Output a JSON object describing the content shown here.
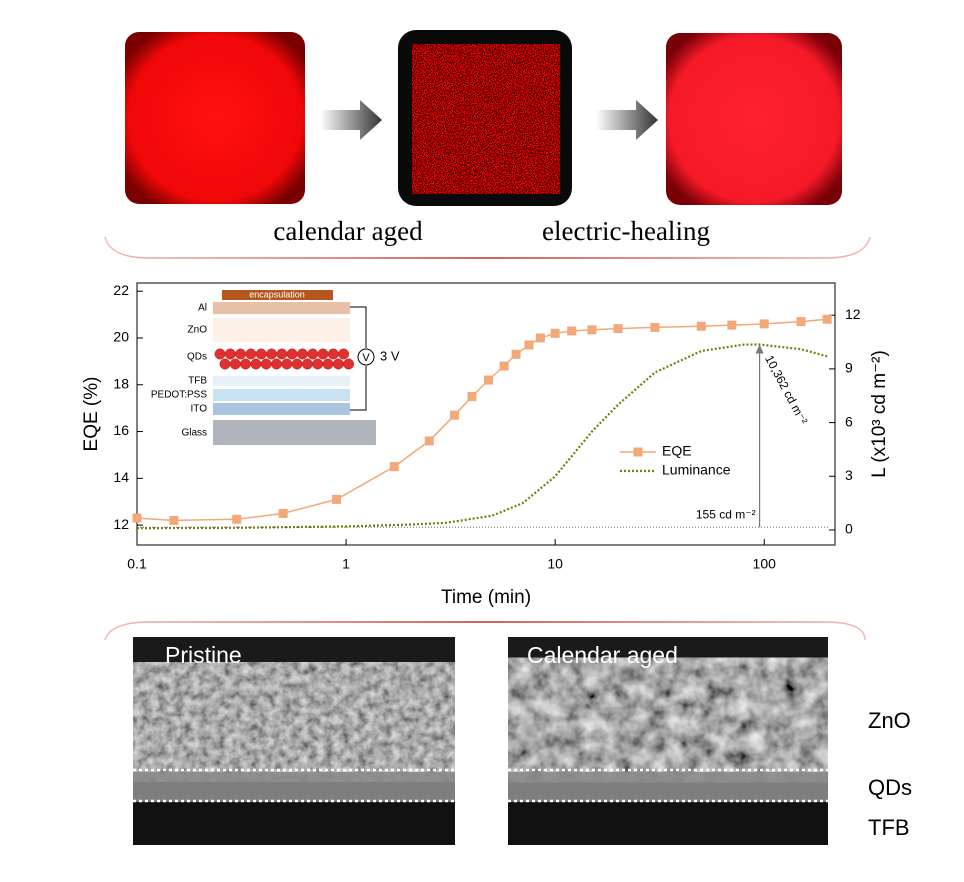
{
  "images": {
    "labels": [
      "calendar aged",
      "electric-healing"
    ]
  },
  "chart_data": {
    "type": "line",
    "xscale": "log",
    "xlabel": "Time (min)",
    "ylabel": "EQE (%)",
    "y2label": "L (x10³ cd m⁻²)",
    "xlim": [
      0.1,
      218
    ],
    "xticks": [
      0.1,
      1,
      10,
      100
    ],
    "ylim": [
      11.15,
      22.35
    ],
    "yticks": [
      12,
      14,
      16,
      18,
      20,
      22
    ],
    "y2lim": [
      -0.84,
      13.8
    ],
    "y2ticks": [
      0,
      3,
      6,
      9,
      12
    ],
    "legend": "center-right",
    "series": [
      {
        "name": "EQE",
        "color": "#f2a878",
        "x": [
          0.1,
          0.15,
          0.3,
          0.5,
          0.9,
          1.7,
          2.5,
          3.3,
          4,
          4.8,
          5.7,
          6.5,
          7.5,
          8.5,
          10,
          12,
          15,
          20,
          30,
          50,
          70,
          100,
          150,
          200
        ],
        "values": [
          12.3,
          12.2,
          12.25,
          12.5,
          13.1,
          14.5,
          15.6,
          16.7,
          17.5,
          18.2,
          18.8,
          19.3,
          19.7,
          20.0,
          20.2,
          20.3,
          20.35,
          20.4,
          20.45,
          20.5,
          20.55,
          20.6,
          20.7,
          20.8
        ]
      },
      {
        "name": "Luminance",
        "color": "#7a7a10",
        "axis": "y2",
        "x": [
          0.1,
          0.3,
          1,
          2,
          3,
          5,
          7,
          10,
          15,
          20,
          30,
          50,
          80,
          95,
          150,
          200
        ],
        "values": [
          0.1,
          0.12,
          0.2,
          0.3,
          0.4,
          0.8,
          1.5,
          3,
          5.5,
          7,
          8.8,
          10,
          10.36,
          10.362,
          10.1,
          9.7
        ]
      }
    ],
    "annotations": [
      {
        "text": "10,362 cd m⁻²",
        "x": 95,
        "y": 10.362
      },
      {
        "text": "155 cd m⁻²",
        "x": 95,
        "y": 0.155
      }
    ]
  },
  "inset": {
    "encapsulation": "encapsulation",
    "layers": [
      "Al",
      "ZnO",
      "QDs",
      "TFB",
      "PEDOT:PSS",
      "ITO",
      "Glass"
    ],
    "voltage_symbol": "V",
    "voltage": "3 V"
  },
  "tem": {
    "panels": [
      "Pristine",
      "Calendar aged"
    ],
    "layers": [
      "ZnO",
      "QDs",
      "TFB"
    ]
  }
}
